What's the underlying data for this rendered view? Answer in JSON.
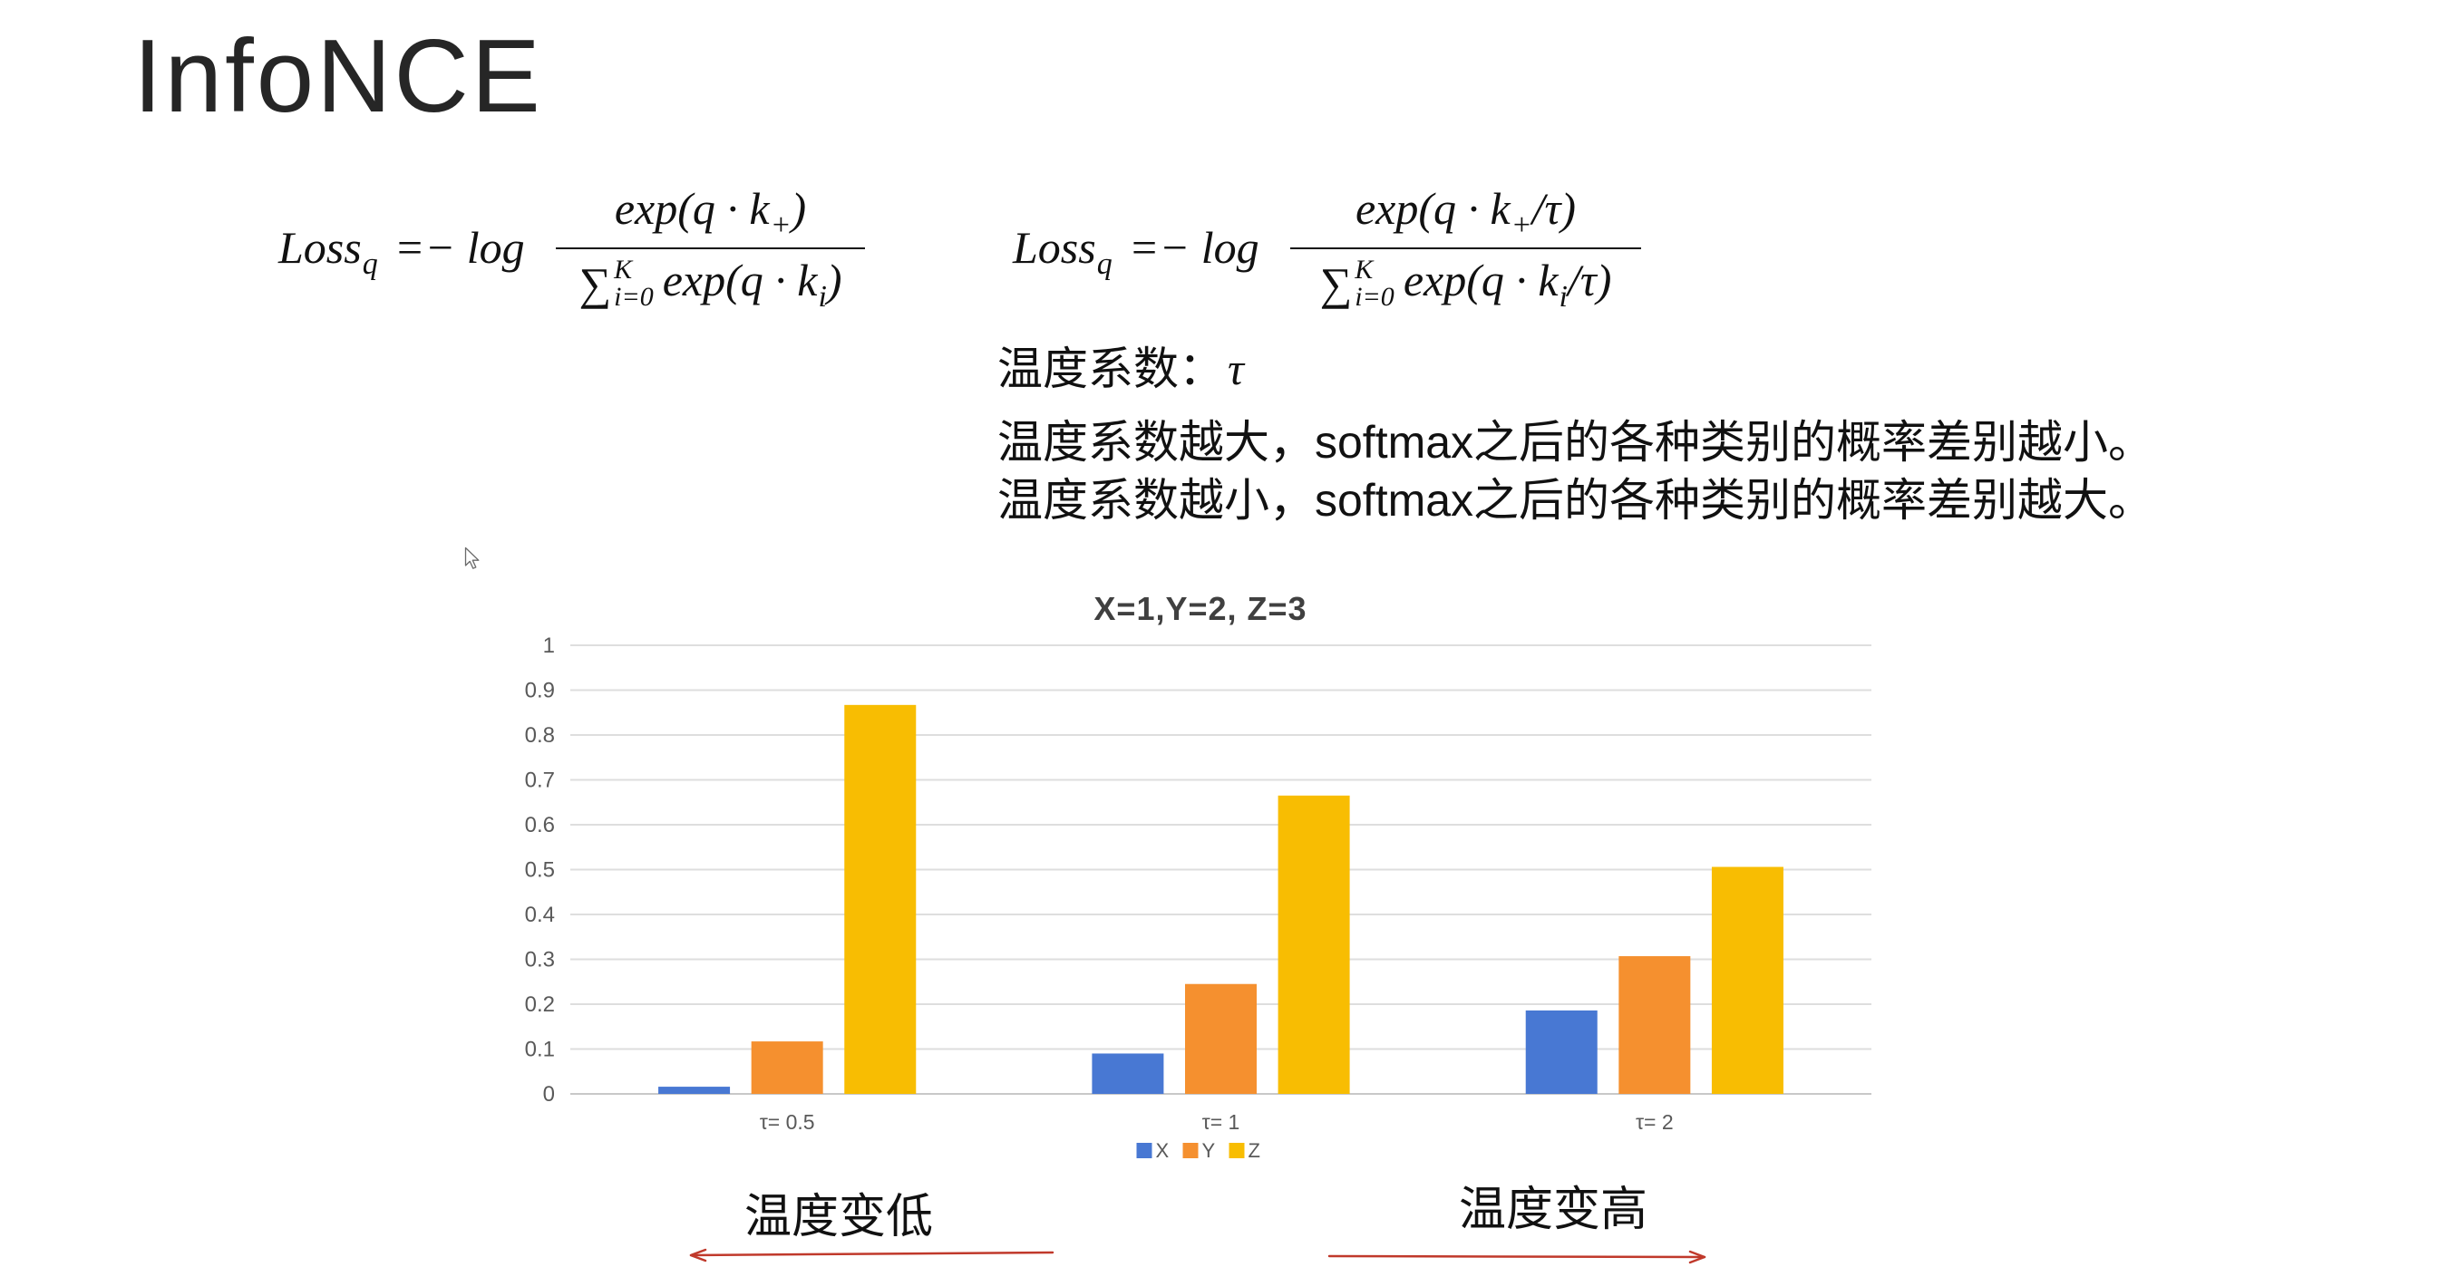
{
  "slide": {
    "title": "InfoNCE",
    "formula_left": {
      "lhs": "Loss",
      "lhs_sub": "q",
      "op": "=− log",
      "num": "exp(q · k",
      "num_sub": "+",
      "num_end": ")",
      "den_sum": "∑",
      "den_sup": "K",
      "den_sub": "i=0",
      "den": "exp(q · k",
      "den_idx": "i",
      "den_end": ")"
    },
    "formula_right": {
      "lhs": "Loss",
      "lhs_sub": "q",
      "op": "=− log",
      "num": "exp(q · k",
      "num_sub": "+",
      "num_end": "/τ)",
      "den_sum": "∑",
      "den_sup": "K",
      "den_sub": "i=0",
      "den": "exp(q · k",
      "den_idx": "i",
      "den_end": "/τ)"
    },
    "temperature_label": "温度系数：",
    "temperature_symbol": "τ",
    "notes": [
      "温度系数越大，softmax之后的各种类别的概率差别越小。",
      "温度系数越小，softmax之后的各种类别的概率差别越大。"
    ],
    "annotations": {
      "low": {
        "text": "温度变低",
        "icon": "left-arrow-icon"
      },
      "high": {
        "text": "温度变高",
        "icon": "right-arrow-icon"
      }
    },
    "cursor_icon": "mouse-pointer-icon",
    "colors": {
      "title": "#262626",
      "text": "#111111",
      "arrow": "#C0392B"
    }
  },
  "chart_data": {
    "type": "bar",
    "title": "X=1,Y=2, Z=3",
    "categories": [
      "τ= 0.5",
      "τ= 1",
      "τ= 2"
    ],
    "series": [
      {
        "name": "X",
        "color": "#4878D3",
        "values": [
          0.016,
          0.09,
          0.186
        ]
      },
      {
        "name": "Y",
        "color": "#F5902F",
        "values": [
          0.117,
          0.245,
          0.307
        ]
      },
      {
        "name": "Z",
        "color": "#F8BD02",
        "values": [
          0.867,
          0.665,
          0.506
        ]
      }
    ],
    "ylim": [
      0,
      1
    ],
    "yticks": [
      0,
      0.1,
      0.2,
      0.3,
      0.4,
      0.5,
      0.6,
      0.7,
      0.8,
      0.9,
      1
    ],
    "ytick_labels": [
      "0",
      "0.1",
      "0.2",
      "0.3",
      "0.4",
      "0.5",
      "0.6",
      "0.7",
      "0.8",
      "0.9",
      "1"
    ],
    "grid": true,
    "legend": "bottom"
  }
}
